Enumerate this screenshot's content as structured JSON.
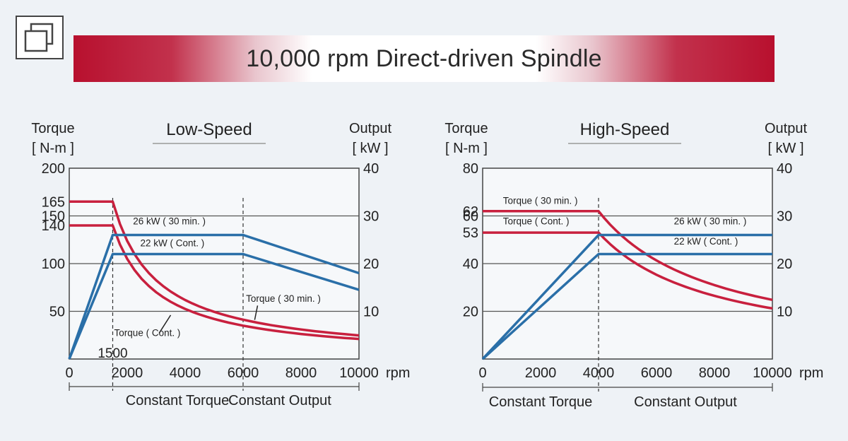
{
  "title": "10,000 rpm Direct-driven Spindle",
  "colors": {
    "torque": "#c8203e",
    "output": "#2a6fa8",
    "grid": "#555555"
  },
  "header_icon": "copy-icon",
  "chart_data": [
    {
      "type": "line",
      "title": "Low-Speed",
      "y_left_label": [
        "Torque",
        "[ N-m ]"
      ],
      "y_right_label": [
        "Output",
        "[ kW ]"
      ],
      "x_unit": "rpm",
      "xlim": [
        0,
        10000
      ],
      "ylim_left": [
        0,
        200
      ],
      "ylim_right": [
        0,
        40
      ],
      "x_ticks": [
        "0",
        "2000",
        "4000",
        "6000",
        "8000",
        "10000"
      ],
      "y_left_ticks": [
        {
          "v": 200,
          "label": "200"
        },
        {
          "v": 165,
          "label": "165"
        },
        {
          "v": 150,
          "label": "150"
        },
        {
          "v": 140,
          "label": "140"
        },
        {
          "v": 100,
          "label": "100"
        },
        {
          "v": 50,
          "label": "50"
        }
      ],
      "y_right_ticks": [
        {
          "v": 40,
          "label": "40"
        },
        {
          "v": 30,
          "label": "30"
        },
        {
          "v": 20,
          "label": "20"
        },
        {
          "v": 10,
          "label": "10"
        }
      ],
      "hgrid_left": [
        150,
        100,
        50
      ],
      "vdash": [
        1500,
        6000
      ],
      "corner_label": "1500",
      "regions": [
        "Constant Torque",
        "Constant Output"
      ],
      "series": [
        {
          "name": "Torque ( 30 min. )",
          "kind": "torque",
          "axis": "left",
          "curve": "hyperbolic",
          "base": 165,
          "knee": 1500,
          "end": 10000,
          "step": 250
        },
        {
          "name": "Torque ( Cont. )",
          "kind": "torque",
          "axis": "left",
          "curve": "hyperbolic",
          "base": 140,
          "knee": 1500,
          "end": 10000,
          "step": 250
        },
        {
          "name": "26 kW ( 30 min. )",
          "kind": "output",
          "axis": "right",
          "points": [
            [
              0,
              0
            ],
            [
              1500,
              26
            ],
            [
              6000,
              26
            ],
            [
              10000,
              18
            ]
          ]
        },
        {
          "name": "22 kW ( Cont. )",
          "kind": "output",
          "axis": "right",
          "points": [
            [
              0,
              0
            ],
            [
              1500,
              22
            ],
            [
              6000,
              22
            ],
            [
              10000,
              14.5
            ]
          ]
        }
      ],
      "annotations": [
        {
          "text": "26 kW ( 30 min. )",
          "x": 2200,
          "y": 141
        },
        {
          "text": "22 kW ( Cont. )",
          "x": 2450,
          "y": 118
        },
        {
          "text": "Torque ( 30 min. )",
          "x": 6100,
          "y": 60
        },
        {
          "text": "Torque ( Cont. )",
          "x": 1550,
          "y": 24
        }
      ]
    },
    {
      "type": "line",
      "title": "High-Speed",
      "y_left_label": [
        "Torque",
        "[ N-m ]"
      ],
      "y_right_label": [
        "Output",
        "[ kW ]"
      ],
      "x_unit": "rpm",
      "xlim": [
        0,
        10000
      ],
      "ylim_left": [
        0,
        80
      ],
      "ylim_right": [
        0,
        40
      ],
      "x_ticks": [
        "0",
        "2000",
        "4000",
        "6000",
        "8000",
        "10000"
      ],
      "y_left_ticks": [
        {
          "v": 80,
          "label": "80"
        },
        {
          "v": 62,
          "label": "62"
        },
        {
          "v": 60,
          "label": "60"
        },
        {
          "v": 53,
          "label": "53"
        },
        {
          "v": 40,
          "label": "40"
        },
        {
          "v": 20,
          "label": "20"
        }
      ],
      "y_right_ticks": [
        {
          "v": 40,
          "label": "40"
        },
        {
          "v": 30,
          "label": "30"
        },
        {
          "v": 20,
          "label": "20"
        },
        {
          "v": 10,
          "label": "10"
        }
      ],
      "hgrid_left": [
        60,
        40,
        20
      ],
      "vdash": [
        4000
      ],
      "corner_label": "",
      "regions": [
        "Constant Torque",
        "Constant Output"
      ],
      "series": [
        {
          "name": "Torque ( 30 min. )",
          "kind": "torque",
          "axis": "left",
          "curve": "hyperbolic",
          "base": 62,
          "knee": 4000,
          "end": 10000,
          "step": 200
        },
        {
          "name": "Torque ( Cont. )",
          "kind": "torque",
          "axis": "left",
          "curve": "hyperbolic",
          "base": 53,
          "knee": 4000,
          "end": 10000,
          "step": 200
        },
        {
          "name": "26 kW ( 30 min. )",
          "kind": "output",
          "axis": "right",
          "points": [
            [
              0,
              0
            ],
            [
              4000,
              26
            ],
            [
              10000,
              26
            ]
          ]
        },
        {
          "name": "22 kW ( Cont. )",
          "kind": "output",
          "axis": "right",
          "points": [
            [
              0,
              0
            ],
            [
              4000,
              22
            ],
            [
              10000,
              22
            ]
          ]
        }
      ],
      "annotations": [
        {
          "text": "Torque ( 30 min. )",
          "x": 700,
          "y": 65
        },
        {
          "text": "Torque ( Cont. )",
          "x": 700,
          "y": 56.5
        },
        {
          "text": "26 kW ( 30 min. )",
          "x": 6600,
          "y": 56.5
        },
        {
          "text": "22 kW ( Cont. )",
          "x": 6600,
          "y": 48
        }
      ]
    }
  ]
}
